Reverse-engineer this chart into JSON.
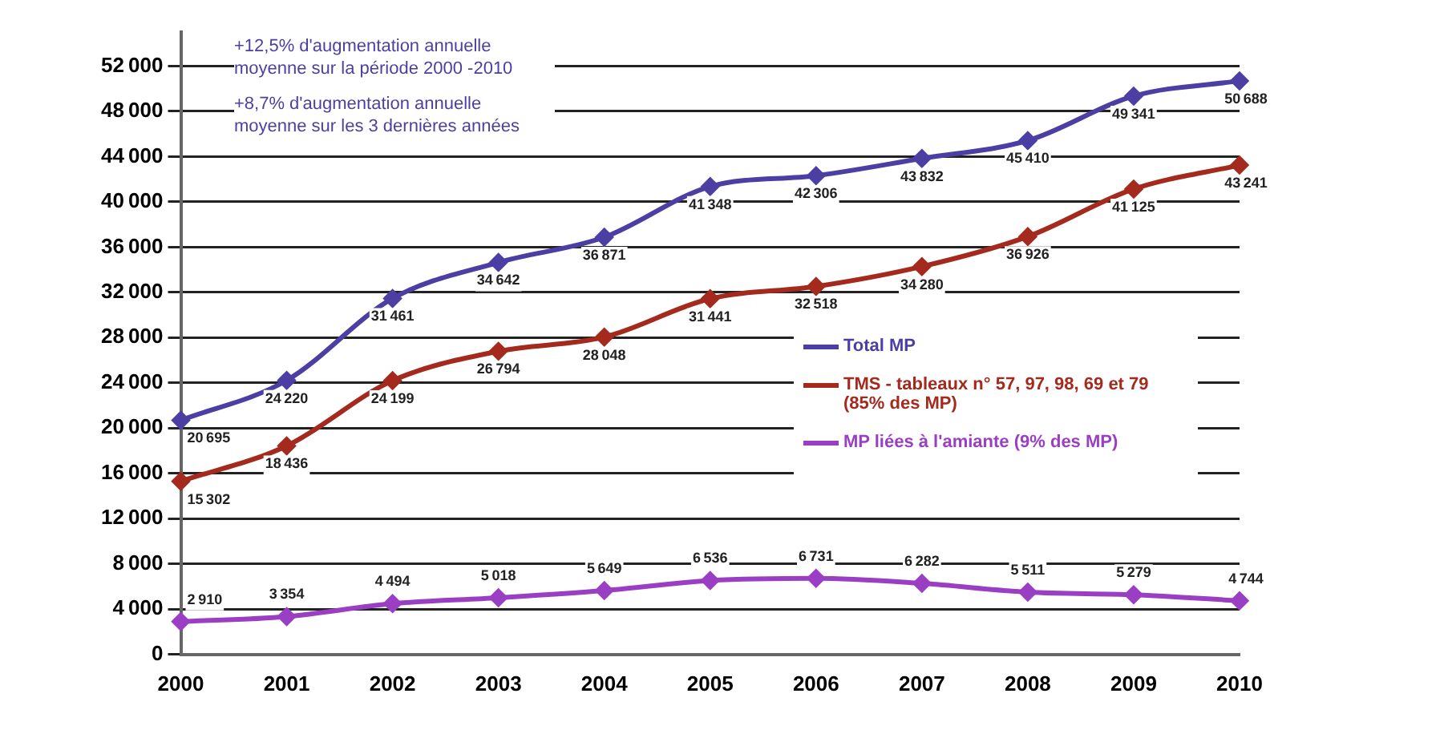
{
  "chart_data": {
    "type": "line",
    "categories": [
      "2000",
      "2001",
      "2002",
      "2003",
      "2004",
      "2005",
      "2006",
      "2007",
      "2008",
      "2009",
      "2010"
    ],
    "series": [
      {
        "name": "Total MP",
        "color": "#4b3fa3",
        "values": [
          20695,
          24220,
          31461,
          34642,
          36871,
          41348,
          42306,
          43832,
          45410,
          49341,
          50688
        ]
      },
      {
        "name": "TMS - tableaux n° 57, 97, 98, 69 et 79 (85% des MP)",
        "color": "#a52a1e",
        "values": [
          15302,
          18436,
          24199,
          26794,
          28048,
          31441,
          32518,
          34280,
          36926,
          41125,
          43241
        ]
      },
      {
        "name": "MP liées à l'amiante (9% des MP)",
        "color": "#9a3fc4",
        "values": [
          2910,
          3354,
          4494,
          5018,
          5649,
          6536,
          6731,
          6282,
          5511,
          5279,
          4744
        ]
      }
    ],
    "ylim": [
      0,
      55000
    ],
    "yticks": [
      0,
      4000,
      8000,
      12000,
      16000,
      20000,
      24000,
      28000,
      32000,
      36000,
      40000,
      44000,
      48000,
      52000
    ],
    "grid": "y",
    "legend": "right",
    "marker": "diamond",
    "line_style": "solid",
    "data_labels": true,
    "annotations": [
      "+12,5% d'augmentation annuelle moyenne sur la période 2000    -2010",
      "+8,7% d'augmentation annuelle moyenne  sur les 3 dernières années"
    ]
  }
}
